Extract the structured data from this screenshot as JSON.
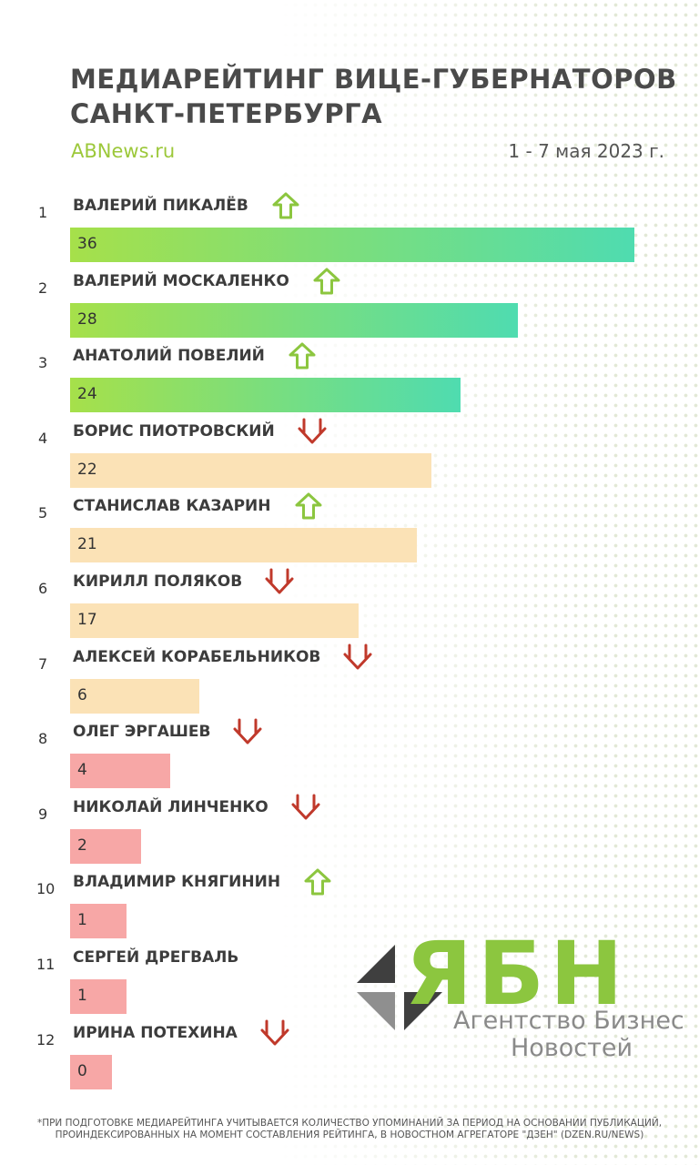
{
  "header": {
    "title_line1": "МЕДИАРЕЙТИНГ ВИЦЕ-ГУБЕРНАТОРОВ",
    "title_line2": "САНКТ-ПЕТЕРБУРГА",
    "site": "ABNews.ru",
    "period": "1 - 7 мая 2023 г."
  },
  "colors": {
    "green_start": "#a6e04a",
    "green_end": "#4fdcb0",
    "peach": "#fbe2b6",
    "pink": "#f7a7a6",
    "arrow_up": "#8cc63f",
    "arrow_down": "#c0392b"
  },
  "chart_data": {
    "type": "bar",
    "orientation": "horizontal",
    "title": "МЕДИАРЕЙТИНГ ВИЦЕ-ГУБЕРНАТОРОВ САНКТ-ПЕТЕРБУРГА",
    "xlim": [
      0,
      36
    ],
    "rows": [
      {
        "rank": "1",
        "name": "ВАЛЕРИЙ ПИКАЛЁВ",
        "value": 36,
        "trend": "up",
        "band": "green"
      },
      {
        "rank": "2",
        "name": "ВАЛЕРИЙ МОСКАЛЕНКО",
        "value": 28,
        "trend": "up",
        "band": "green"
      },
      {
        "rank": "3",
        "name": "АНАТОЛИЙ ПОВЕЛИЙ",
        "value": 24,
        "trend": "up",
        "band": "green"
      },
      {
        "rank": "4",
        "name": "БОРИС ПИОТРОВСКИЙ",
        "value": 22,
        "trend": "down",
        "band": "peach"
      },
      {
        "rank": "5",
        "name": "СТАНИСЛАВ КАЗАРИН",
        "value": 21,
        "trend": "up",
        "band": "peach"
      },
      {
        "rank": "6",
        "name": "КИРИЛЛ ПОЛЯКОВ",
        "value": 17,
        "trend": "down",
        "band": "peach"
      },
      {
        "rank": "7",
        "name": "АЛЕКСЕЙ КОРАБЕЛЬНИКОВ",
        "value": 6,
        "trend": "down",
        "band": "peach"
      },
      {
        "rank": "8",
        "name": "ОЛЕГ ЭРГАШЕВ",
        "value": 4,
        "trend": "down",
        "band": "pink"
      },
      {
        "rank": "9",
        "name": "НИКОЛАЙ ЛИНЧЕНКО",
        "value": 2,
        "trend": "down",
        "band": "pink"
      },
      {
        "rank": "10",
        "name": "ВЛАДИМИР КНЯГИНИН",
        "value": 1,
        "trend": "up",
        "band": "pink"
      },
      {
        "rank": "11",
        "name": "СЕРГЕЙ ДРЕГВАЛЬ",
        "value": 1,
        "trend": "none",
        "band": "pink"
      },
      {
        "rank": "12",
        "name": "ИРИНА ПОТЕХИНА",
        "value": 0,
        "trend": "down",
        "band": "pink"
      }
    ]
  },
  "logo": {
    "letters": "ЯБН",
    "line1": "Агентство Бизнес",
    "line2": "Новостей"
  },
  "footnote": "*ПРИ ПОДГОТОВКЕ МЕДИАРЕЙТИНГА УЧИТЫВАЕТСЯ КОЛИЧЕСТВО УПОМИНАНИЙ  ЗА ПЕРИОД НА ОСНОВАНИИ ПУБЛИКАЦИЙ, ПРОИНДЕКСИРОВАННЫХ НА МОМЕНТ СОСТАВЛЕНИЯ РЕЙТИНГА, В НОВОСТНОМ АГРЕГАТОРЕ \"ДЗЕН\" (DZEN.RU/NEWS)"
}
